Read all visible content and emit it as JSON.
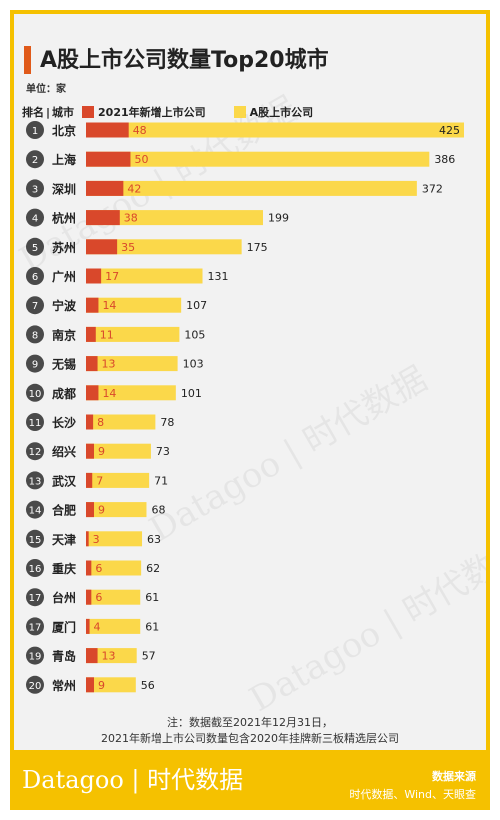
{
  "title": "A股上市公司数量Top20城市",
  "unit_label": "单位：家",
  "legend": {
    "rank_header": "排名",
    "city_header": "城市",
    "series1": "2021年新增上市公司",
    "series2": "A股上市公司"
  },
  "colors": {
    "new_listed": "#d9482b",
    "total_listed": "#fbd84a",
    "rank_circle": "#4a4a4a",
    "border": "#f5c100"
  },
  "chart_data": {
    "type": "bar",
    "orientation": "horizontal",
    "rows": [
      {
        "rank": "1",
        "city": "北京",
        "new": 48,
        "total": 425
      },
      {
        "rank": "2",
        "city": "上海",
        "new": 50,
        "total": 386
      },
      {
        "rank": "3",
        "city": "深圳",
        "new": 42,
        "total": 372
      },
      {
        "rank": "4",
        "city": "杭州",
        "new": 38,
        "total": 199
      },
      {
        "rank": "5",
        "city": "苏州",
        "new": 35,
        "total": 175
      },
      {
        "rank": "6",
        "city": "广州",
        "new": 17,
        "total": 131
      },
      {
        "rank": "7",
        "city": "宁波",
        "new": 14,
        "total": 107
      },
      {
        "rank": "8",
        "city": "南京",
        "new": 11,
        "total": 105
      },
      {
        "rank": "9",
        "city": "无锡",
        "new": 13,
        "total": 103
      },
      {
        "rank": "10",
        "city": "成都",
        "new": 14,
        "total": 101
      },
      {
        "rank": "11",
        "city": "长沙",
        "new": 8,
        "total": 78
      },
      {
        "rank": "12",
        "city": "绍兴",
        "new": 9,
        "total": 73
      },
      {
        "rank": "13",
        "city": "武汉",
        "new": 7,
        "total": 71
      },
      {
        "rank": "14",
        "city": "合肥",
        "new": 9,
        "total": 68
      },
      {
        "rank": "15",
        "city": "天津",
        "new": 3,
        "total": 63
      },
      {
        "rank": "16",
        "city": "重庆",
        "new": 6,
        "total": 62
      },
      {
        "rank": "17",
        "city": "台州",
        "new": 6,
        "total": 61
      },
      {
        "rank": "17",
        "city": "厦门",
        "new": 4,
        "total": 61
      },
      {
        "rank": "19",
        "city": "青岛",
        "new": 13,
        "total": 57
      },
      {
        "rank": "20",
        "city": "常州",
        "new": 9,
        "total": 56
      }
    ]
  },
  "note_line1": "注：数据截至2021年12月31日，",
  "note_line2": "2021年新增上市公司数量包含2020年挂牌新三板精选层公司",
  "footer": {
    "brand": "Datagoo | 时代数据",
    "source_title": "数据来源",
    "source_text": "时代数据、Wind、天眼查"
  },
  "watermark": "Datagoo | 时代数据"
}
